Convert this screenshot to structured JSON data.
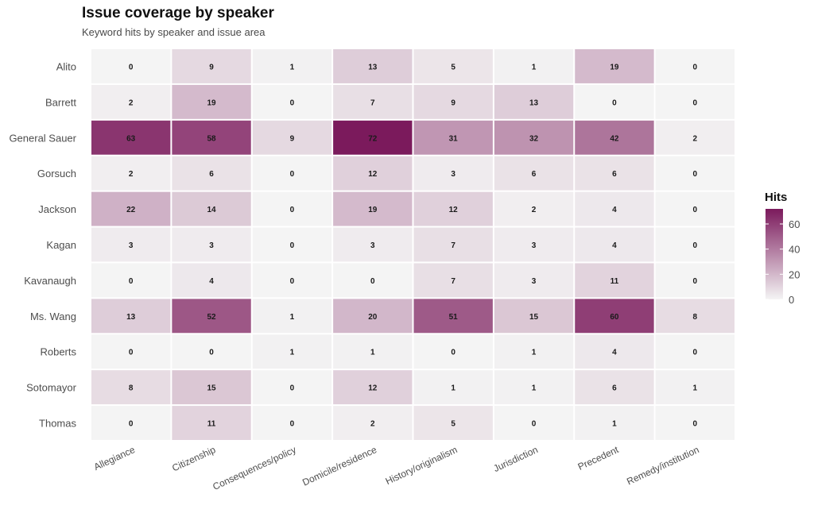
{
  "chart_data": {
    "type": "heatmap",
    "title": "Issue coverage by speaker",
    "subtitle": "Keyword hits by speaker and issue area",
    "xlabel": "",
    "ylabel": "",
    "x_categories": [
      "Allegiance",
      "Citizenship",
      "Consequences/policy",
      "Domicile/residence",
      "History/originalism",
      "Jurisdiction",
      "Precedent",
      "Remedy/institution"
    ],
    "y_categories": [
      "Alito",
      "Barrett",
      "General Sauer",
      "Gorsuch",
      "Jackson",
      "Kagan",
      "Kavanaugh",
      "Ms. Wang",
      "Roberts",
      "Sotomayor",
      "Thomas"
    ],
    "values": [
      [
        0,
        9,
        1,
        13,
        5,
        1,
        19,
        0
      ],
      [
        2,
        19,
        0,
        7,
        9,
        13,
        0,
        0
      ],
      [
        63,
        58,
        9,
        72,
        31,
        32,
        42,
        2
      ],
      [
        2,
        6,
        0,
        12,
        3,
        6,
        6,
        0
      ],
      [
        22,
        14,
        0,
        19,
        12,
        2,
        4,
        0
      ],
      [
        3,
        3,
        0,
        3,
        7,
        3,
        4,
        0
      ],
      [
        0,
        4,
        0,
        0,
        7,
        3,
        11,
        0
      ],
      [
        13,
        52,
        1,
        20,
        51,
        15,
        60,
        8
      ],
      [
        0,
        0,
        1,
        1,
        0,
        1,
        4,
        0
      ],
      [
        8,
        15,
        0,
        12,
        1,
        1,
        6,
        1
      ],
      [
        0,
        11,
        0,
        2,
        5,
        0,
        1,
        0
      ]
    ],
    "color_scale": {
      "low": "#f4f4f4",
      "high": "#7b1a5c",
      "min": 0,
      "max": 72
    },
    "legend": {
      "title": "Hits",
      "ticks": [
        0,
        20,
        40,
        60
      ],
      "placement": "right"
    },
    "grid": false
  }
}
